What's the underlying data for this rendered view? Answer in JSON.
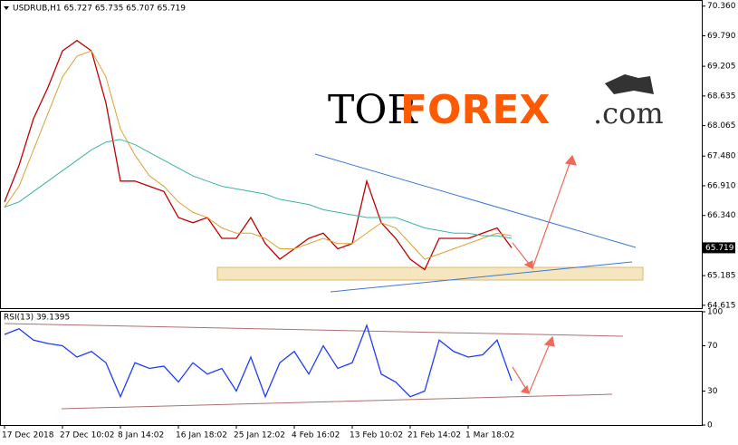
{
  "watermark": {
    "part1": "TOR",
    "part2": "FOREX",
    "part3": ".com"
  },
  "chart_data": [
    {
      "type": "line",
      "title": "USDRUB,H1 65.727 65.735 65.707 65.719",
      "categories": [
        "17 Dec 2018",
        null,
        null,
        null,
        "27 Dec 10:02",
        null,
        null,
        null,
        "8 Jan 14:02",
        null,
        null,
        null,
        "16 Jan 18:02",
        null,
        null,
        null,
        "25 Jan 12:02",
        null,
        null,
        null,
        "4 Feb 16:02",
        null,
        null,
        null,
        "13 Feb 10:02",
        null,
        null,
        null,
        "21 Feb 14:02",
        null,
        null,
        null,
        "1 Mar 18:02",
        null,
        null,
        null
      ],
      "series": [
        {
          "color": "#c00000",
          "values": [
            66.6,
            67.3,
            68.2,
            68.8,
            69.5,
            69.7,
            69.5,
            68.5,
            67.0,
            67.0,
            66.9,
            66.8,
            66.3,
            66.2,
            66.3,
            65.9,
            65.9,
            66.3,
            65.8,
            65.5,
            65.7,
            65.9,
            66.0,
            65.7,
            65.8,
            67.0,
            66.2,
            65.9,
            65.5,
            65.3,
            65.9,
            65.9,
            65.9,
            66.0,
            66.1,
            65.719
          ]
        },
        {
          "color": "#e0a030",
          "values": [
            66.5,
            66.9,
            67.6,
            68.3,
            69.0,
            69.4,
            69.5,
            69.0,
            68.0,
            67.5,
            67.1,
            66.9,
            66.6,
            66.4,
            66.3,
            66.1,
            66.0,
            66.0,
            65.9,
            65.7,
            65.7,
            65.8,
            65.9,
            65.8,
            65.8,
            66.0,
            66.2,
            66.1,
            65.8,
            65.5,
            65.6,
            65.7,
            65.8,
            65.9,
            66.0,
            65.95
          ]
        },
        {
          "color": "#3cb4a0",
          "values": [
            66.5,
            66.6,
            66.8,
            67.0,
            67.2,
            67.4,
            67.6,
            67.75,
            67.8,
            67.7,
            67.55,
            67.4,
            67.25,
            67.1,
            67.0,
            66.9,
            66.85,
            66.8,
            66.75,
            66.65,
            66.6,
            66.55,
            66.45,
            66.4,
            66.35,
            66.3,
            66.3,
            66.3,
            66.2,
            66.1,
            66.05,
            66.0,
            66.0,
            65.95,
            65.95,
            65.9
          ]
        }
      ],
      "last_price": 65.719,
      "ylim": [
        64.56,
        70.46
      ],
      "yticks": [
        {
          "value": 70.36,
          "label": "70.360"
        },
        {
          "value": 69.79,
          "label": "69.790"
        },
        69.205,
        68.635,
        68.065,
        {
          "value": 67.48,
          "label": "67.480"
        },
        {
          "value": 66.91,
          "label": "66.910"
        },
        {
          "value": 66.34,
          "label": "66.340"
        },
        65.185,
        64.615
      ]
    },
    {
      "type": "line",
      "title": "RSI(13) 39.1395",
      "series": [
        {
          "color": "#1e3cff",
          "values": [
            80,
            85,
            75,
            72,
            70,
            60,
            65,
            55,
            25,
            55,
            50,
            52,
            38,
            55,
            45,
            50,
            30,
            60,
            25,
            55,
            65,
            45,
            70,
            50,
            55,
            88,
            45,
            38,
            25,
            30,
            75,
            65,
            60,
            62,
            75,
            39.1395
          ]
        }
      ],
      "ylim": [
        0,
        100
      ],
      "yticks": [
        100,
        70,
        30,
        0
      ]
    }
  ]
}
